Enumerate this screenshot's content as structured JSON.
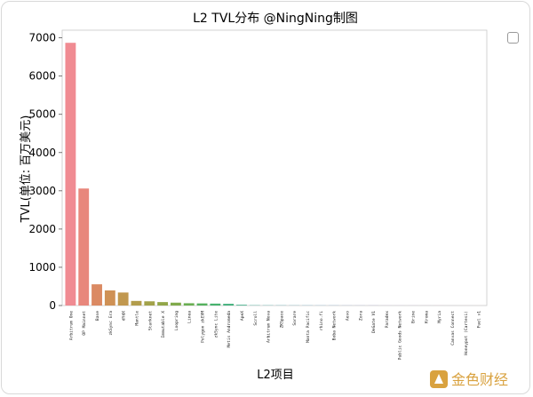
{
  "checkbox": {
    "checked": false
  },
  "watermark": {
    "text": "金色财经"
  },
  "chart_data": {
    "type": "bar",
    "title": "L2 TVL分布 @NingNing制图",
    "xlabel": "L2项目",
    "ylabel": "TVL(单位: 百万美元)",
    "ylim": [
      0,
      7200
    ],
    "yticks": [
      0,
      1000,
      2000,
      3000,
      4000,
      5000,
      6000,
      7000
    ],
    "grid": false,
    "categories": [
      "Arbitrum One",
      "OP Mainnet",
      "Base",
      "zkSync Era",
      "dYdX",
      "Mantle",
      "Starknet",
      "Immutable X",
      "Loopring",
      "Linea",
      "Polygon zkEVM",
      "zkSync Lite",
      "Metis Andromeda",
      "ApeX",
      "Scroll",
      "Arbitrum Nova",
      "ZKSpace",
      "Sorare",
      "Manta Pacific",
      "rhino.fi",
      "Boba Network",
      "Aevo",
      "Zora",
      "DeGate V1",
      "Paradex",
      "Public Goods Network",
      "Brine",
      "Kroma",
      "Myria",
      "Canvas Connect",
      "Honeypot (Cartesi)",
      "Fuel v1"
    ],
    "values": [
      6870,
      3060,
      555,
      395,
      340,
      120,
      110,
      90,
      75,
      60,
      55,
      50,
      45,
      20,
      8,
      6,
      5,
      4,
      4,
      3,
      3,
      2,
      2,
      2,
      1,
      1,
      1,
      1,
      1,
      0.5,
      0.5,
      0.5
    ],
    "colors": [
      "#f08b92",
      "#e8877c",
      "#db8a63",
      "#cf9155",
      "#c1984f",
      "#b29d4c",
      "#a2a24a",
      "#92a649",
      "#80aa4b",
      "#6aae52",
      "#55b15e",
      "#46b26e",
      "#45b27f",
      "#47b18d",
      "#48b09a",
      "#49afa6",
      "#4aaeb2",
      "#4cadbe",
      "#50abcc",
      "#57a8d9",
      "#64a3e4",
      "#769de9",
      "#8a96ec",
      "#9d8fec",
      "#ae88e9",
      "#bd82e4",
      "#ca7cdb",
      "#d578cf",
      "#de77c1",
      "#e479b3",
      "#e97ca6",
      "#ec8099"
    ]
  }
}
